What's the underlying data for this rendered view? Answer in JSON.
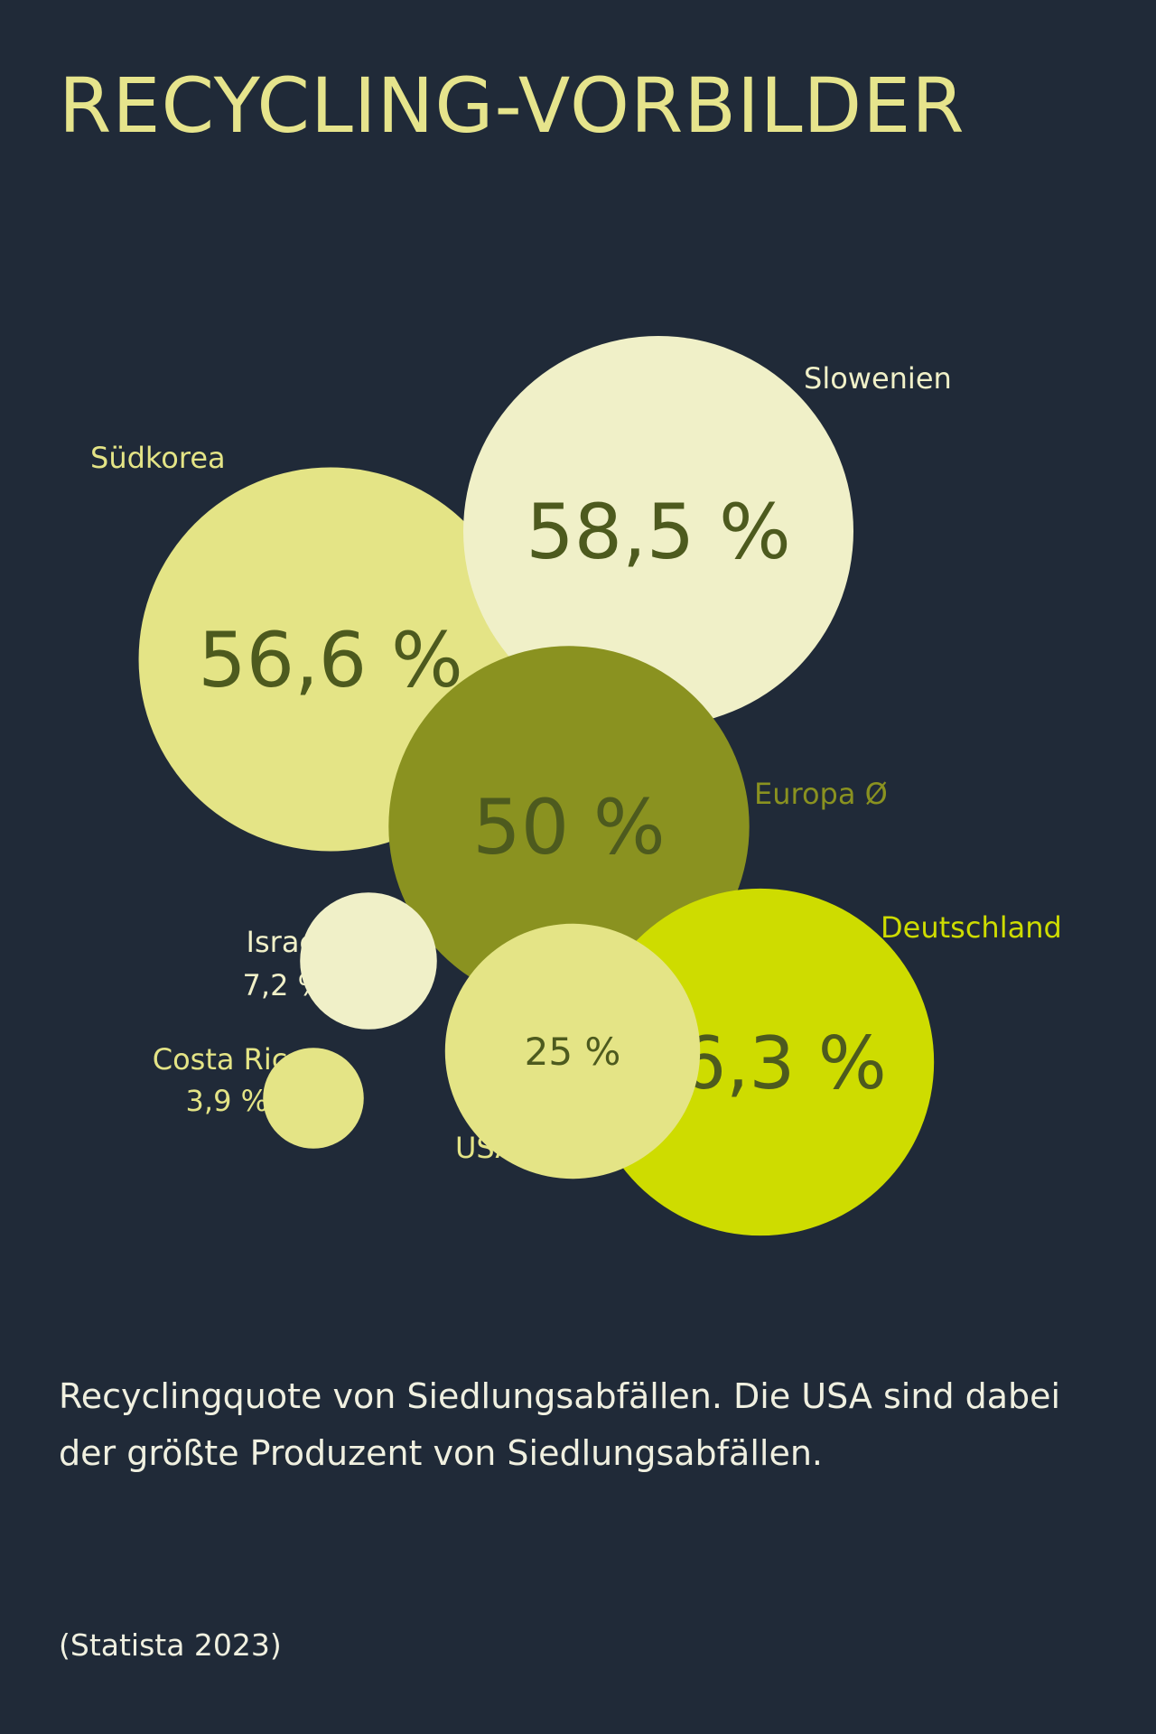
{
  "title": "RECYCLING-VORBILDER",
  "caption": "Recyclingquote von Siedlungsabfällen. Die USA sind dabei der größte Produzent von Siedlungsabfällen.",
  "source": "(Statista 2023)",
  "colors": {
    "background": "#202a38",
    "title": "#e6e48c",
    "caption": "#f0f0e0",
    "value_text": "#4d5a1e"
  },
  "chart_data": {
    "type": "bubble",
    "unit": "%",
    "series": [
      {
        "name": "Slowenien",
        "value": 58.5,
        "value_label": "58,5 %",
        "color": "#f0f0c8",
        "label_color": "#f0f0c8"
      },
      {
        "name": "Südkorea",
        "value": 56.6,
        "value_label": "56,6 %",
        "color": "#e4e486",
        "label_color": "#e4e486"
      },
      {
        "name": "Europa Ø",
        "value": 50,
        "value_label": "50 %",
        "color": "#8a9220",
        "label_color": "#8a9220"
      },
      {
        "name": "Deutschland",
        "value": 46.3,
        "value_label": "46,3 %",
        "color": "#cedc00",
        "label_color": "#cedc00"
      },
      {
        "name": "USA",
        "value": 25,
        "value_label": "25 %",
        "color": "#e4e486",
        "label_color": "#e4e486"
      },
      {
        "name": "Israel",
        "value": 7.2,
        "value_label": "7,2 %",
        "color": "#f0f0c8",
        "label_color": "#f0f0c8"
      },
      {
        "name": "Costa Rica",
        "value": 3.9,
        "value_label": "3,9 %",
        "color": "#e4e486",
        "label_color": "#e4e486"
      }
    ]
  }
}
